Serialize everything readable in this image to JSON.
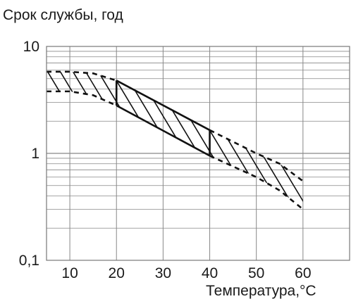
{
  "chart_data": {
    "type": "area",
    "ylabel": "Срок службы, год",
    "xlabel": "Температура,°С",
    "y_scale": "log",
    "ylim": [
      0.1,
      10
    ],
    "y_ticks": [
      "10",
      "1",
      "0,1"
    ],
    "xlim": [
      5,
      70
    ],
    "x_ticks": [
      "10",
      "20",
      "30",
      "40",
      "50",
      "60"
    ],
    "grid": true,
    "band": {
      "hatched": true,
      "solid_segment": {
        "upper": {
          "x": [
            20,
            40
          ],
          "y": [
            4.8,
            1.65
          ]
        },
        "lower": {
          "x": [
            20,
            40
          ],
          "y": [
            2.8,
            0.95
          ]
        }
      },
      "dashed_left": {
        "upper": {
          "x": [
            5,
            10,
            15,
            20
          ],
          "y": [
            5.8,
            5.8,
            5.6,
            4.8
          ]
        },
        "lower": {
          "x": [
            5,
            10,
            15,
            20
          ],
          "y": [
            3.8,
            3.8,
            3.5,
            2.8
          ]
        }
      },
      "dashed_right": {
        "upper": {
          "x": [
            40,
            50,
            55,
            60
          ],
          "y": [
            1.65,
            1.0,
            0.8,
            0.55
          ]
        },
        "lower": {
          "x": [
            40,
            50,
            55,
            60
          ],
          "y": [
            0.95,
            0.6,
            0.45,
            0.3
          ]
        }
      }
    }
  }
}
